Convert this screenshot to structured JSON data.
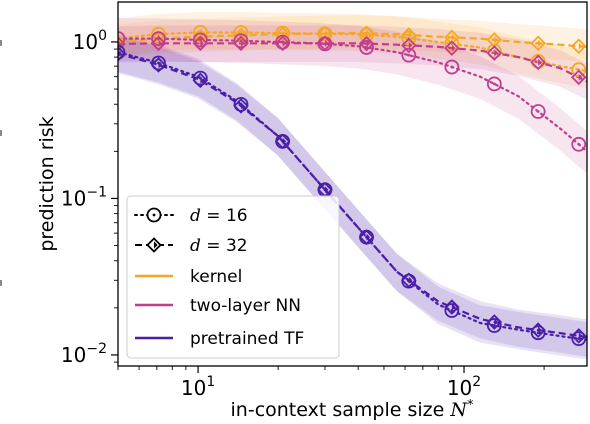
{
  "chart_data": {
    "type": "line",
    "title": "",
    "xlabel": "in-context sample size N*",
    "ylabel": "prediction risk",
    "xscale": "log",
    "yscale": "log",
    "xlim": [
      5,
      290
    ],
    "ylim": [
      0.0085,
      1.8
    ],
    "grid": false,
    "legend_position": "lower-left",
    "x_ticks": [
      {
        "value": 10,
        "mantissa": "10",
        "exp": "1"
      },
      {
        "value": 100,
        "mantissa": "10",
        "exp": "2"
      }
    ],
    "y_ticks": [
      {
        "value": 1,
        "mantissa": "10",
        "exp": "0"
      },
      {
        "value": 0.1,
        "mantissa": "10",
        "exp": "−1"
      },
      {
        "value": 0.01,
        "mantissa": "10",
        "exp": "−2"
      }
    ],
    "colors": {
      "kernel": "#f5a623",
      "two-layer NN": "#c13d8e",
      "pretrained TF": "#4a1fa8"
    },
    "series": [
      {
        "method": "kernel",
        "d": 16,
        "style": "dotted",
        "marker": "circle",
        "x": [
          5,
          7,
          10,
          14,
          20,
          28,
          40,
          56,
          80,
          115,
          160,
          230,
          290
        ],
        "y": [
          1.05,
          1.12,
          1.15,
          1.15,
          1.14,
          1.13,
          1.12,
          1.08,
          1.0,
          0.92,
          0.8,
          0.7,
          0.65
        ],
        "band": [
          1.35,
          0.78
        ]
      },
      {
        "method": "kernel",
        "d": 32,
        "style": "dashed",
        "marker": "diamond",
        "x": [
          5,
          7,
          10,
          14,
          20,
          28,
          40,
          56,
          80,
          115,
          160,
          230,
          290
        ],
        "y": [
          1.0,
          1.05,
          1.08,
          1.1,
          1.12,
          1.13,
          1.14,
          1.12,
          1.08,
          1.05,
          1.0,
          0.96,
          0.93
        ],
        "band": [
          1.3,
          0.8
        ]
      },
      {
        "method": "two-layer NN",
        "d": 16,
        "style": "dotted",
        "marker": "circle",
        "x": [
          5,
          7,
          10,
          14,
          20,
          28,
          40,
          56,
          80,
          115,
          160,
          230,
          290
        ],
        "y": [
          1.05,
          1.05,
          1.03,
          1.02,
          1.0,
          0.98,
          0.94,
          0.86,
          0.74,
          0.6,
          0.45,
          0.28,
          0.2
        ],
        "band": [
          1.35,
          0.72
        ]
      },
      {
        "method": "two-layer NN",
        "d": 32,
        "style": "dashed",
        "marker": "diamond",
        "x": [
          5,
          7,
          10,
          14,
          20,
          28,
          40,
          56,
          80,
          115,
          160,
          230,
          290
        ],
        "y": [
          0.97,
          0.98,
          0.98,
          0.98,
          0.98,
          0.98,
          0.98,
          0.96,
          0.93,
          0.88,
          0.8,
          0.68,
          0.56
        ],
        "band": [
          1.3,
          0.76
        ]
      },
      {
        "method": "pretrained TF",
        "d": 16,
        "style": "dotted",
        "marker": "circle",
        "x": [
          5,
          7,
          10,
          14,
          20,
          28,
          40,
          56,
          80,
          115,
          160,
          230,
          290
        ],
        "y": [
          0.86,
          0.74,
          0.6,
          0.42,
          0.25,
          0.13,
          0.065,
          0.034,
          0.021,
          0.016,
          0.0145,
          0.0132,
          0.0125
        ],
        "band": [
          1.3,
          0.75
        ]
      },
      {
        "method": "pretrained TF",
        "d": 32,
        "style": "dashed",
        "marker": "diamond",
        "x": [
          5,
          7,
          10,
          14,
          20,
          28,
          40,
          56,
          80,
          115,
          160,
          230,
          290
        ],
        "y": [
          0.84,
          0.72,
          0.58,
          0.41,
          0.25,
          0.13,
          0.065,
          0.034,
          0.022,
          0.017,
          0.015,
          0.0138,
          0.013
        ],
        "band": [
          1.3,
          0.75
        ]
      }
    ],
    "markers_x": [
      5,
      7.1,
      10.2,
      14.5,
      20.8,
      30,
      43,
      62,
      90,
      130,
      190,
      270
    ],
    "legend": [
      {
        "kind": "d",
        "style": "dotted",
        "marker": "circle",
        "label_var": "d",
        "label_eq": " = 16"
      },
      {
        "kind": "d",
        "style": "dashed",
        "marker": "diamond",
        "label_var": "d",
        "label_eq": " = 32"
      },
      {
        "kind": "method",
        "color": "#f5a623",
        "label": "kernel"
      },
      {
        "kind": "method",
        "color": "#c13d8e",
        "label": "two-layer NN"
      },
      {
        "kind": "method",
        "color": "#4a1fa8",
        "label": "pretrained TF"
      }
    ]
  }
}
